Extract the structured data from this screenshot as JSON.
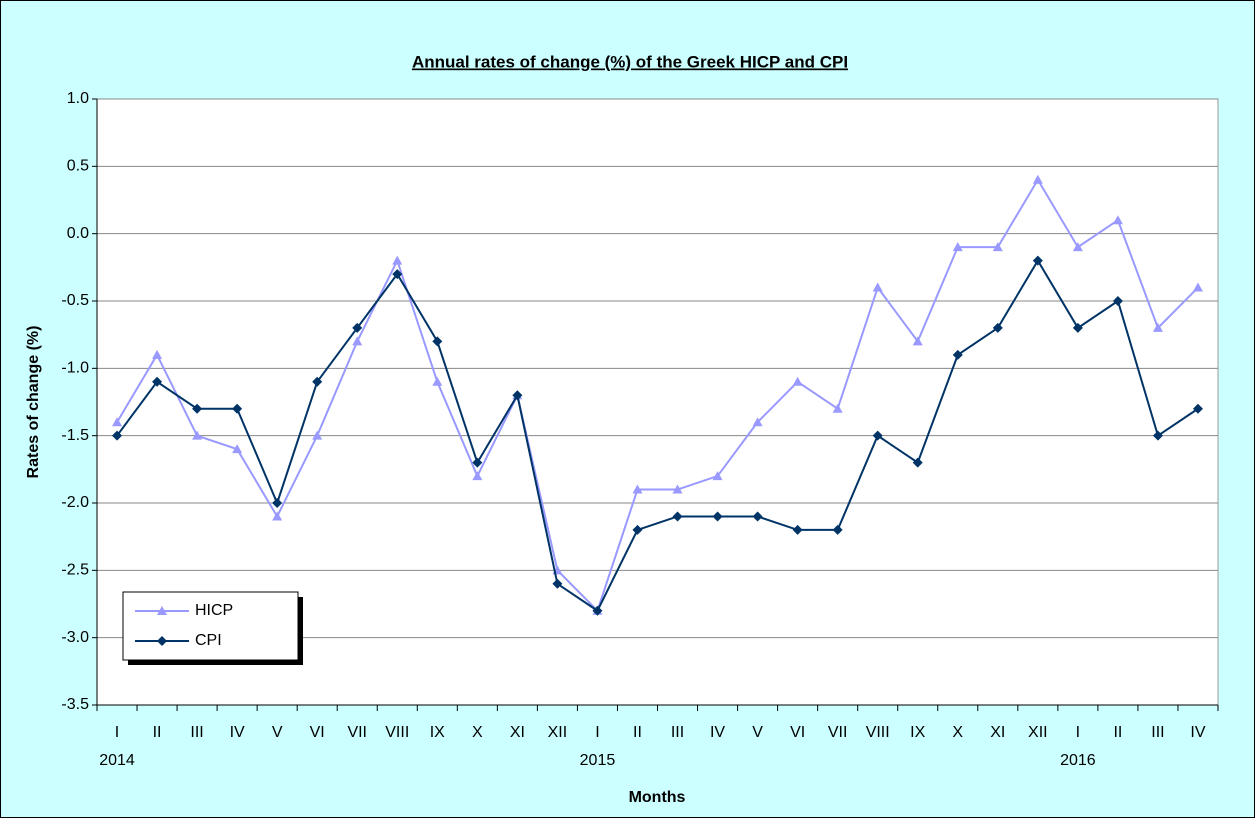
{
  "chart_data": {
    "type": "line",
    "title": "Annual rates of change (%) of the Greek HICP and CPI",
    "x_label": "Months",
    "y_label": "Rates of change (%)",
    "categories": [
      "I",
      "II",
      "III",
      "IV",
      "V",
      "VI",
      "VII",
      "VIII",
      "IX",
      "X",
      "XI",
      "XII",
      "I",
      "II",
      "III",
      "IV",
      "V",
      "VI",
      "VII",
      "VIII",
      "IX",
      "X",
      "XI",
      "XII",
      "I",
      "II",
      "III",
      "IV"
    ],
    "years": [
      "2014",
      "2015",
      "2016"
    ],
    "series": [
      {
        "name": "HICP",
        "color": "#9999ff",
        "marker": "triangle",
        "values": [
          -1.4,
          -0.9,
          -1.5,
          -1.6,
          -2.1,
          -1.5,
          -0.8,
          -0.2,
          -1.1,
          -1.8,
          -1.2,
          -2.5,
          -2.8,
          -1.9,
          -1.9,
          -1.8,
          -1.4,
          -1.1,
          -1.3,
          -0.4,
          -0.8,
          -0.1,
          -0.1,
          0.4,
          -0.1,
          0.1,
          -0.7,
          -0.4
        ]
      },
      {
        "name": "CPI",
        "color": "#003366",
        "marker": "diamond",
        "values": [
          -1.5,
          -1.1,
          -1.3,
          -1.3,
          -2.0,
          -1.1,
          -0.7,
          -0.3,
          -0.8,
          -1.7,
          -1.2,
          -2.6,
          -2.8,
          -2.2,
          -2.1,
          -2.1,
          -2.1,
          -2.2,
          -2.2,
          -1.5,
          -1.7,
          -0.9,
          -0.7,
          -0.2,
          -0.7,
          -0.5,
          -1.5,
          -1.3
        ]
      }
    ],
    "ylim": [
      -3.5,
      1.0
    ],
    "yticks": [
      {
        "value": -3.5,
        "label": "-3.5"
      },
      {
        "value": -3,
        "label": "-3.0"
      },
      -2.5,
      {
        "value": -2,
        "label": "-2.0"
      },
      -1.5,
      {
        "value": -1,
        "label": "-1.0"
      },
      -0.5,
      {
        "value": 0,
        "label": "0.0"
      },
      0.5,
      {
        "value": 1,
        "label": "1.0"
      }
    ],
    "grid": true,
    "legend": "lower left"
  }
}
